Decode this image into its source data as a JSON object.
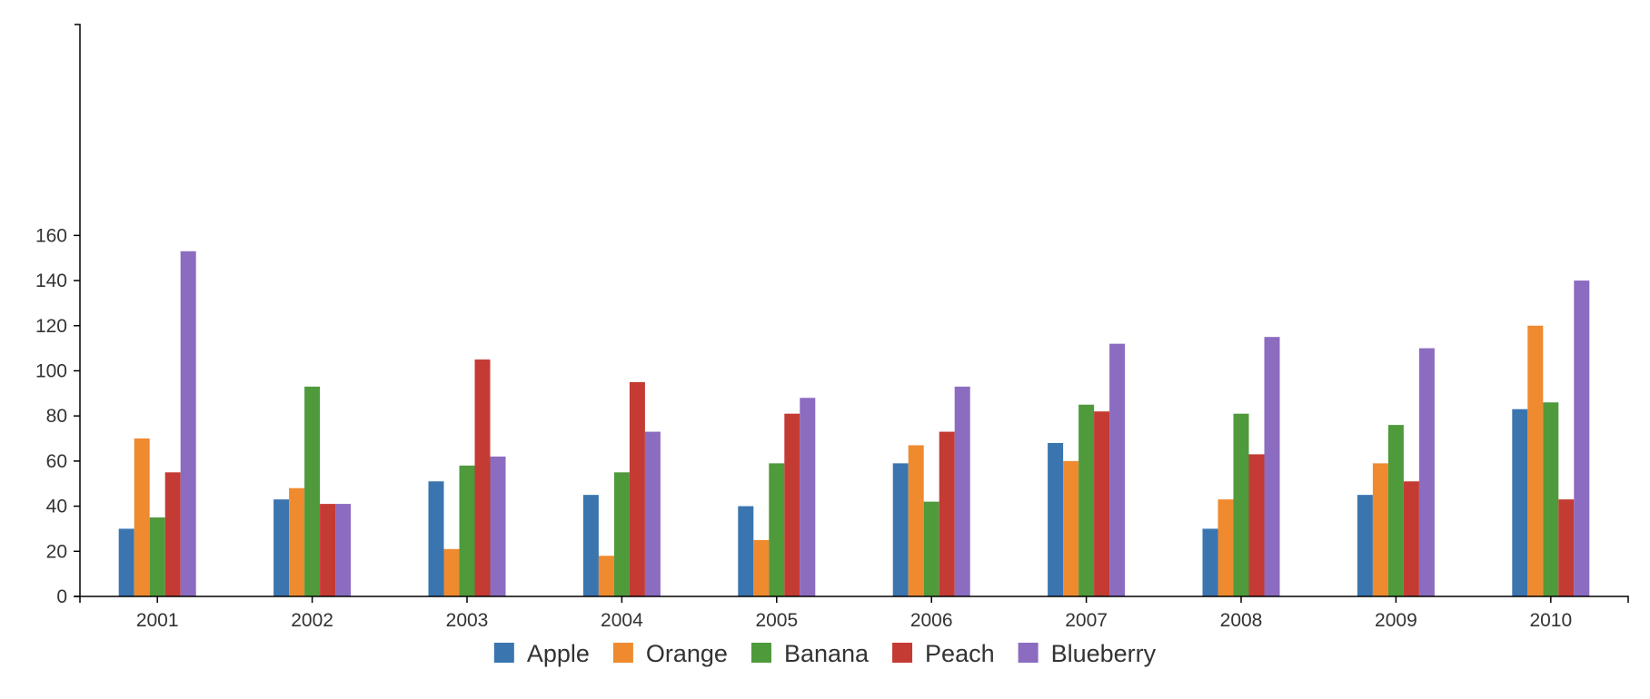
{
  "colors": {
    "Apple": "#3a75b0",
    "Orange": "#ef8a2f",
    "Banana": "#4f9a3b",
    "Peach": "#c43b34",
    "Blueberry": "#8b6cc0",
    "axis": "#000000",
    "text": "#333333",
    "background": "#ffffff"
  },
  "chart_data": {
    "type": "bar",
    "title": "",
    "xlabel": "",
    "ylabel": "",
    "ylim": [
      0,
      170
    ],
    "y_ticks": [
      0,
      20,
      40,
      60,
      80,
      100,
      120,
      140,
      160
    ],
    "grid": false,
    "legend_position": "bottom",
    "categories": [
      "2001",
      "2002",
      "2003",
      "2004",
      "2005",
      "2006",
      "2007",
      "2008",
      "2009",
      "2010"
    ],
    "series": [
      {
        "name": "Apple",
        "values": [
          30,
          43,
          51,
          45,
          40,
          59,
          68,
          30,
          45,
          83
        ]
      },
      {
        "name": "Orange",
        "values": [
          70,
          48,
          21,
          18,
          25,
          67,
          60,
          43,
          59,
          120
        ]
      },
      {
        "name": "Banana",
        "values": [
          35,
          93,
          58,
          55,
          59,
          42,
          85,
          81,
          76,
          86
        ]
      },
      {
        "name": "Peach",
        "values": [
          55,
          41,
          105,
          95,
          81,
          73,
          82,
          63,
          51,
          43
        ]
      },
      {
        "name": "Blueberry",
        "values": [
          153,
          41,
          62,
          73,
          88,
          93,
          112,
          115,
          110,
          140
        ]
      }
    ]
  }
}
